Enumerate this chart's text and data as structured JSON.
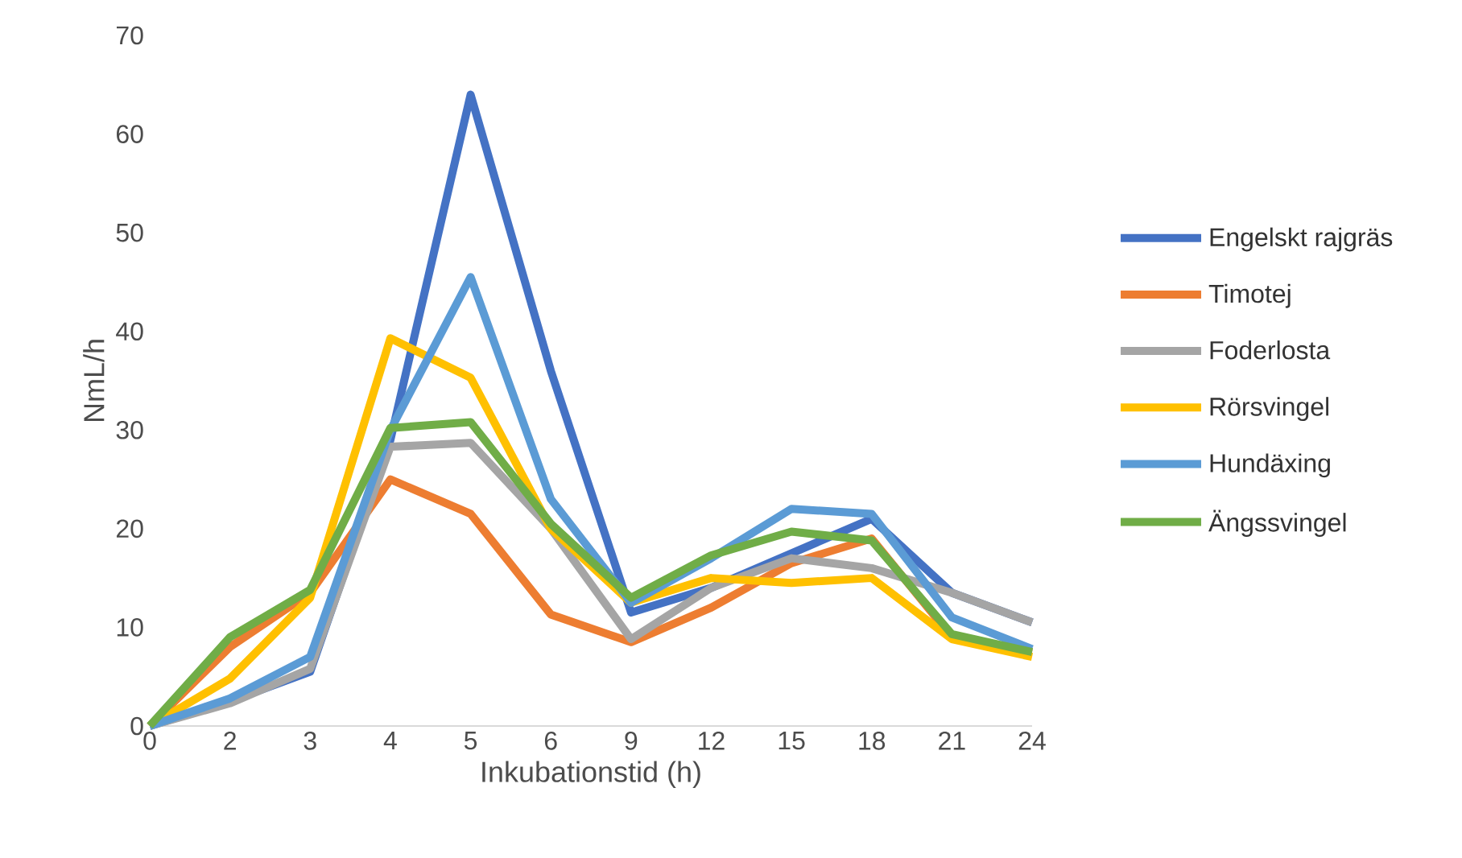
{
  "chart_data": {
    "type": "line",
    "xlabel": "Inkubationstid (h)",
    "ylabel": "NmL/h",
    "categories": [
      "0",
      "2",
      "3",
      "4",
      "5",
      "6",
      "9",
      "12",
      "15",
      "18",
      "21",
      "24"
    ],
    "ylim": [
      0,
      70
    ],
    "yticks": [
      0,
      10,
      20,
      30,
      40,
      50,
      60,
      70
    ],
    "grid": false,
    "legend": "right",
    "marker": "none",
    "line_style": "solid",
    "series": [
      {
        "name": "Engelskt rajgräs",
        "color": "#4472c4",
        "values": [
          0,
          2.5,
          5.5,
          29,
          64,
          36,
          11.5,
          14,
          17.5,
          21,
          13.5,
          10.5
        ]
      },
      {
        "name": "Timotej",
        "color": "#ed7d31",
        "values": [
          0,
          8,
          13.5,
          25,
          21.5,
          11.3,
          8.5,
          12,
          16.5,
          19,
          9,
          7.5
        ]
      },
      {
        "name": "Foderlosta",
        "color": "#a5a5a5",
        "values": [
          0,
          2.3,
          5.8,
          28.3,
          28.7,
          20,
          8.8,
          14,
          17,
          16,
          13.5,
          10.5
        ]
      },
      {
        "name": "Rörsvingel",
        "color": "#ffc000",
        "values": [
          0,
          4.8,
          13,
          39.3,
          35.3,
          20,
          12.5,
          15,
          14.5,
          15,
          8.8,
          7
        ]
      },
      {
        "name": "Hundäxing",
        "color": "#5b9bd5",
        "values": [
          0,
          2.8,
          7,
          30,
          45.5,
          23,
          12.5,
          17,
          22,
          21.5,
          11,
          7.8
        ]
      },
      {
        "name": "Ängssvingel",
        "color": "#70ad47",
        "values": [
          0,
          9,
          13.8,
          30.2,
          30.8,
          20.5,
          13,
          17.3,
          19.7,
          18.8,
          9.3,
          7.5
        ]
      }
    ]
  }
}
